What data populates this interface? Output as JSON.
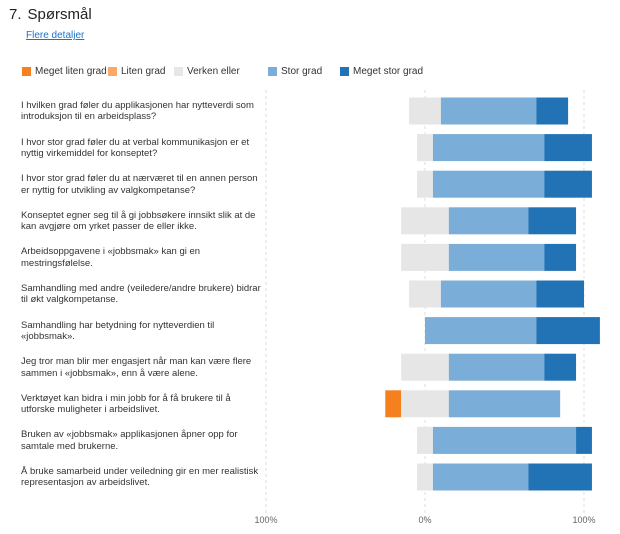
{
  "header": {
    "number": "7.",
    "title": "Spørsmål",
    "details_link": "Flere detaljer"
  },
  "chart_data": {
    "type": "bar",
    "layout": "diverging-stacked-horizontal",
    "series": [
      {
        "name": "Meget liten grad",
        "color": "#f5801e",
        "side": "negative"
      },
      {
        "name": "Liten grad",
        "color": "#f9a868",
        "side": "negative"
      },
      {
        "name": "Verken eller",
        "color": "#e6e6e6",
        "side": "neutral"
      },
      {
        "name": "Stor grad",
        "color": "#7badd9",
        "side": "positive"
      },
      {
        "name": "Meget stor grad",
        "color": "#2273b5",
        "side": "positive"
      }
    ],
    "categories": [
      "I hvilken grad føler du applikasjonen har nytteverdi som introduksjon til en arbeidsplass?",
      "I hvor stor grad føler du at verbal kommunikasjon er et nyttig virkemiddel for konseptet?",
      "I hvor stor grad føler du at nærværet til en annen person er nyttig for utvikling av valgkompetanse?",
      "Konseptet egner seg til å gi jobbsøkere innsikt slik at de kan avgjøre om yrket passer de eller ikke.",
      "Arbeidsoppgavene i «jobbsmak» kan gi en mestringsfølelse.",
      "Samhandling med andre (veiledere/andre brukere) bidrar til økt valgkompetanse.",
      "Samhandling har betydning for nytteverdien til «jobbsmak».",
      "Jeg tror man blir mer engasjert når man kan være flere sammen i «jobbsmak», enn å være alene.",
      "Verktøyet kan bidra i min jobb for å få brukere til å utforske muligheter i arbeidslivet.",
      "Bruken av «jobbsmak» applikasjonen åpner opp for samtale med brukerne.",
      "Å bruke samarbeid under veiledning gir en mer realistisk representasjon av arbeidslivet."
    ],
    "values": [
      [
        0,
        0,
        20,
        60,
        20
      ],
      [
        0,
        0,
        10,
        70,
        30
      ],
      [
        0,
        0,
        10,
        70,
        30
      ],
      [
        0,
        0,
        30,
        50,
        30
      ],
      [
        0,
        0,
        30,
        60,
        20
      ],
      [
        0,
        0,
        20,
        60,
        30
      ],
      [
        0,
        0,
        0,
        70,
        40
      ],
      [
        0,
        0,
        30,
        60,
        20
      ],
      [
        10,
        0,
        30,
        70,
        0
      ],
      [
        0,
        0,
        10,
        90,
        10
      ],
      [
        0,
        0,
        10,
        60,
        40
      ]
    ],
    "xlim": [
      -100,
      100
    ],
    "x_tick_labels": [
      "100%",
      "0%",
      "100%"
    ],
    "legend_position": "top"
  }
}
